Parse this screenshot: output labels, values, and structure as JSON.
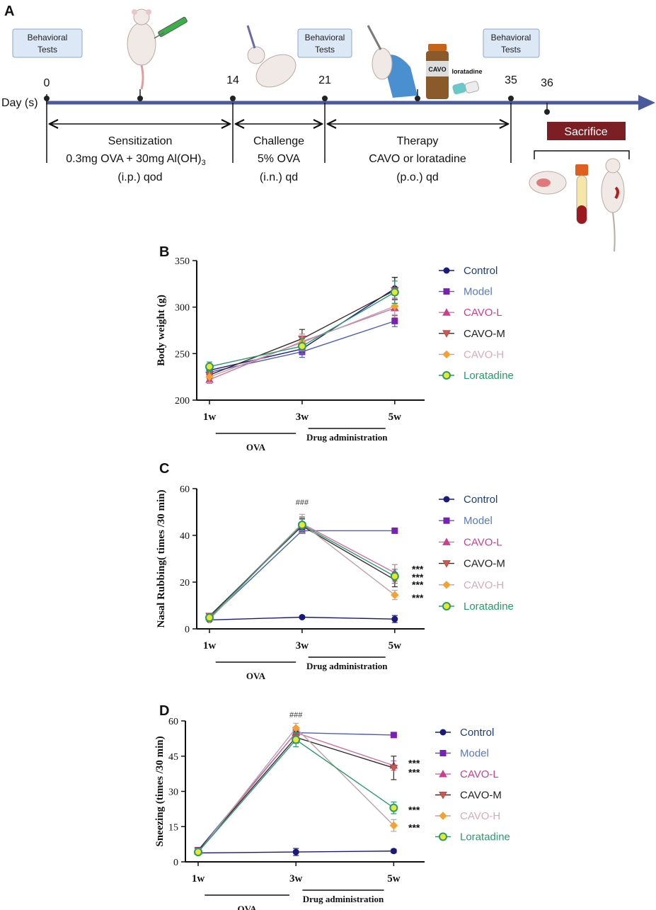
{
  "panel_a": {
    "label": "A",
    "day_label": "Day (s)",
    "behavioral_tests": [
      "Behavioral",
      "Tests"
    ],
    "days": [
      {
        "label": "0",
        "day": 0
      },
      {
        "label": "14",
        "day": 14
      },
      {
        "label": "21",
        "day": 21
      },
      {
        "label": "35",
        "day": 35
      },
      {
        "label": "36",
        "day": 36
      }
    ],
    "phases": [
      {
        "name": "Sensitization",
        "detail": "0.3mg OVA + 30mg Al(OH)",
        "detail_sub": "3",
        "route": "(i.p.)  qod"
      },
      {
        "name": "Challenge",
        "detail": "5% OVA",
        "route": "(i.n.)  qd"
      },
      {
        "name": "Therapy",
        "detail": "CAVO or loratadine",
        "route": "(p.o.)  qd"
      }
    ],
    "vial_label": "CAVO",
    "loratadine_label": "loratadine",
    "sacrifice_label": "Sacrifice",
    "colors": {
      "axis": "#4a5a9c",
      "box_fill": "#dce8f6",
      "box_stroke": "#8aa8cc",
      "sacrifice": "#7b1f24"
    }
  },
  "legend": [
    {
      "name": "Control",
      "color": "#1a1a7a",
      "text_color": "#1f3e7c",
      "marker": "circle",
      "fill": "#1a1a7a"
    },
    {
      "name": "Model",
      "color": "#7a1fb8",
      "text_color": "#5878c0",
      "marker": "square",
      "fill": "#7a1fb8"
    },
    {
      "name": "CAVO-L",
      "color": "#c8408e",
      "text_color": "#c8408e",
      "marker": "triangle-up",
      "fill": "#c8408e"
    },
    {
      "name": "CAVO-M",
      "color": "#b24a48",
      "text_color": "#222222",
      "marker": "triangle-down",
      "fill": "#d0584a"
    },
    {
      "name": "CAVO-H",
      "color": "#f5a030",
      "text_color": "#d8aab8",
      "marker": "diamond",
      "fill": "#f5a030"
    },
    {
      "name": "Loratadine",
      "color": "#2a9a6a",
      "text_color": "#2a9a6a",
      "marker": "ring",
      "fill": "#e8e830"
    }
  ],
  "line_colors": [
    "#1a1a7a",
    "#4a60b8",
    "#d070a8",
    "#3a2a2a",
    "#c0a0a8",
    "#2a9a6a"
  ],
  "chart_data": [
    {
      "type": "line",
      "panel": "B",
      "ylabel": "Body weight (g)",
      "ylim": [
        200,
        350
      ],
      "yticks": [
        200,
        250,
        300,
        350
      ],
      "categories": [
        "1w",
        "3w",
        "5w"
      ],
      "x": [
        0,
        1.5,
        3.0
      ],
      "xlim": [
        0,
        3.3
      ],
      "brackets": [
        {
          "label": "OVA",
          "from": 0.1,
          "to": 1.4
        },
        {
          "label": "Drug administration",
          "from": 1.6,
          "to": 2.85
        }
      ],
      "annotations": [],
      "series": [
        {
          "name": "Control",
          "values": [
            232,
            255,
            320
          ],
          "err": [
            5,
            6,
            12
          ]
        },
        {
          "name": "Model",
          "values": [
            230,
            252,
            285
          ],
          "err": [
            4,
            6,
            6
          ]
        },
        {
          "name": "CAVO-L",
          "values": [
            222,
            263,
            299
          ],
          "err": [
            4,
            8,
            10
          ]
        },
        {
          "name": "CAVO-M",
          "values": [
            227,
            266,
            318
          ],
          "err": [
            4,
            10,
            14
          ]
        },
        {
          "name": "CAVO-H",
          "values": [
            225,
            262,
            301
          ],
          "err": [
            6,
            9,
            9
          ]
        },
        {
          "name": "Loratadine",
          "values": [
            236,
            258,
            316
          ],
          "err": [
            5,
            8,
            12
          ]
        }
      ]
    },
    {
      "type": "line",
      "panel": "C",
      "ylabel": "Nasal Rubbing( times /30 min)",
      "ylim": [
        0,
        60
      ],
      "yticks": [
        0,
        20,
        40,
        60
      ],
      "categories": [
        "1w",
        "3w",
        "5w"
      ],
      "x": [
        0,
        1.5,
        3.0
      ],
      "xlim": [
        0,
        3.3
      ],
      "brackets": [
        {
          "label": "OVA",
          "from": 0.1,
          "to": 1.4
        },
        {
          "label": "Drug administration",
          "from": 1.6,
          "to": 2.85
        }
      ],
      "annotations": [
        {
          "text": "###",
          "x": 1.5,
          "y": 53
        }
      ],
      "sig_labels": [
        {
          "text": "***",
          "y": 26.5
        },
        {
          "text": "***",
          "y": 23
        },
        {
          "text": "***",
          "y": 19.8
        },
        {
          "text": "***",
          "y": 14.3
        }
      ],
      "series": [
        {
          "name": "Control",
          "values": [
            3.8,
            5.0,
            4.2
          ],
          "err": [
            0.5,
            0.6,
            1.5
          ]
        },
        {
          "name": "Model",
          "values": [
            4.5,
            42,
            42
          ],
          "err": [
            0.5,
            1.0,
            0.8
          ]
        },
        {
          "name": "CAVO-L",
          "values": [
            5.0,
            45,
            24
          ],
          "err": [
            0.8,
            3.0,
            3.5
          ]
        },
        {
          "name": "CAVO-M",
          "values": [
            5.5,
            44,
            21
          ],
          "err": [
            0.7,
            3.0,
            3.0
          ]
        },
        {
          "name": "CAVO-H",
          "values": [
            4.0,
            45,
            14.5
          ],
          "err": [
            0.6,
            4.0,
            2.0
          ]
        },
        {
          "name": "Loratadine",
          "values": [
            4.8,
            44.5,
            22.5
          ],
          "err": [
            0.6,
            3.0,
            3.0
          ]
        }
      ]
    },
    {
      "type": "line",
      "panel": "D",
      "ylabel": "Sneezing (times /30 min)",
      "ylim": [
        0,
        60
      ],
      "yticks": [
        0,
        15,
        30,
        45,
        60
      ],
      "categories": [
        "1w",
        "3w",
        "5w"
      ],
      "x": [
        0,
        1.5,
        3.0
      ],
      "xlim": [
        0,
        3.3
      ],
      "brackets": [
        {
          "label": "OVA",
          "from": 0.1,
          "to": 1.4
        },
        {
          "label": "Drug administration",
          "from": 1.6,
          "to": 2.85
        }
      ],
      "annotations": [
        {
          "text": "###",
          "x": 1.5,
          "y": 61.5
        }
      ],
      "sig_labels": [
        {
          "text": "***",
          "y": 43
        },
        {
          "text": "***",
          "y": 39
        },
        {
          "text": "***",
          "y": 23
        },
        {
          "text": "***",
          "y": 15.5
        }
      ],
      "series": [
        {
          "name": "Control",
          "values": [
            3.8,
            4.2,
            4.6
          ],
          "err": [
            0.5,
            1.5,
            0.8
          ]
        },
        {
          "name": "Model",
          "values": [
            5.0,
            55,
            54
          ],
          "err": [
            0.5,
            1.0,
            0.8
          ]
        },
        {
          "name": "CAVO-L",
          "values": [
            4.5,
            55,
            41
          ],
          "err": [
            0.8,
            2.0,
            2.0
          ]
        },
        {
          "name": "CAVO-M",
          "values": [
            4.8,
            53,
            40
          ],
          "err": [
            0.7,
            2.5,
            5.0
          ]
        },
        {
          "name": "CAVO-H",
          "values": [
            4.0,
            57,
            15.5
          ],
          "err": [
            0.6,
            2.0,
            2.5
          ]
        },
        {
          "name": "Loratadine",
          "values": [
            4.2,
            52,
            23
          ],
          "err": [
            0.6,
            3.0,
            2.5
          ]
        }
      ]
    }
  ]
}
